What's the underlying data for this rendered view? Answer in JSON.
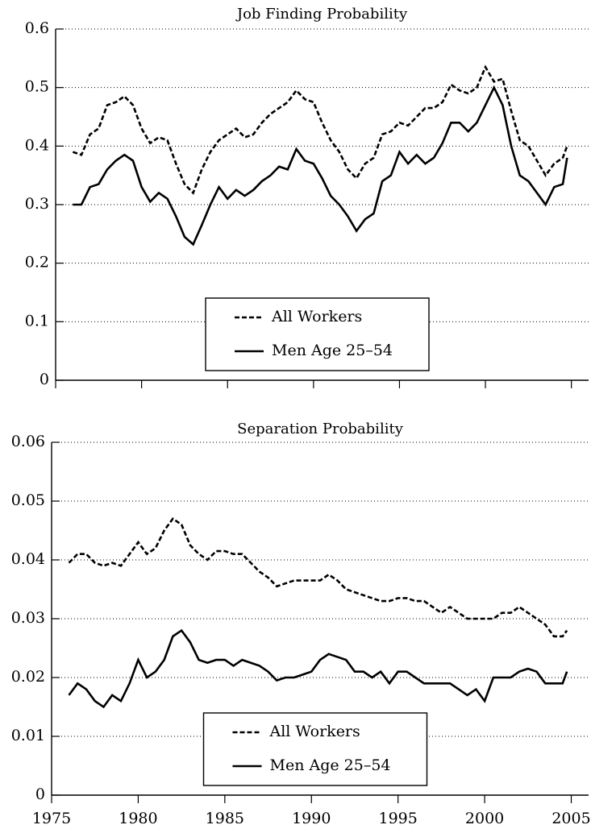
{
  "chart_data": [
    {
      "type": "line",
      "title": "Job Finding Probability",
      "x": [
        1976,
        1976.5,
        1977,
        1977.5,
        1978,
        1978.5,
        1979,
        1979.5,
        1980,
        1980.5,
        1981,
        1981.5,
        1982,
        1982.5,
        1983,
        1983.5,
        1984,
        1984.5,
        1985,
        1985.5,
        1986,
        1986.5,
        1987,
        1987.5,
        1988,
        1988.5,
        1989,
        1989.5,
        1990,
        1990.5,
        1991,
        1991.5,
        1992,
        1992.5,
        1993,
        1993.5,
        1994,
        1994.5,
        1995,
        1995.5,
        1996,
        1996.5,
        1997,
        1997.5,
        1998,
        1998.5,
        1999,
        1999.5,
        2000,
        2000.5,
        2001,
        2001.5,
        2002,
        2002.5,
        2003,
        2003.5,
        2004,
        2004.5,
        2004.75
      ],
      "series": [
        {
          "name": "All Workers",
          "color": "#000000",
          "style": "dashed",
          "values": [
            0.39,
            0.385,
            0.42,
            0.43,
            0.47,
            0.475,
            0.485,
            0.47,
            0.43,
            0.405,
            0.415,
            0.41,
            0.37,
            0.335,
            0.32,
            0.36,
            0.39,
            0.41,
            0.42,
            0.43,
            0.415,
            0.42,
            0.44,
            0.455,
            0.465,
            0.475,
            0.495,
            0.48,
            0.475,
            0.44,
            0.41,
            0.39,
            0.36,
            0.345,
            0.37,
            0.38,
            0.42,
            0.425,
            0.44,
            0.435,
            0.45,
            0.465,
            0.465,
            0.475,
            0.505,
            0.495,
            0.49,
            0.5,
            0.535,
            0.51,
            0.515,
            0.46,
            0.41,
            0.4,
            0.375,
            0.35,
            0.37,
            0.38,
            0.4
          ]
        },
        {
          "name": "Men Age 25–54",
          "color": "#000000",
          "style": "solid",
          "values": [
            0.3,
            0.3,
            0.33,
            0.335,
            0.36,
            0.375,
            0.385,
            0.375,
            0.33,
            0.305,
            0.32,
            0.31,
            0.28,
            0.245,
            0.232,
            0.265,
            0.3,
            0.33,
            0.31,
            0.325,
            0.315,
            0.325,
            0.34,
            0.35,
            0.365,
            0.36,
            0.395,
            0.375,
            0.37,
            0.345,
            0.315,
            0.3,
            0.28,
            0.255,
            0.275,
            0.285,
            0.34,
            0.35,
            0.39,
            0.37,
            0.385,
            0.37,
            0.38,
            0.405,
            0.44,
            0.44,
            0.425,
            0.44,
            0.47,
            0.5,
            0.47,
            0.4,
            0.35,
            0.34,
            0.32,
            0.3,
            0.33,
            0.335,
            0.38
          ]
        }
      ],
      "xlim": [
        1975,
        2006
      ],
      "xticks": [
        1975,
        1980,
        1985,
        1990,
        1995,
        2000,
        2005
      ],
      "ylim": [
        0,
        0.6
      ],
      "yticks": [
        0,
        0.1,
        0.2,
        0.3,
        0.4,
        0.5,
        0.6
      ],
      "grid": true,
      "legend": "bottom-center"
    },
    {
      "type": "line",
      "title": "Separation Probability",
      "x": [
        1976,
        1976.5,
        1977,
        1977.5,
        1978,
        1978.5,
        1979,
        1979.5,
        1980,
        1980.5,
        1981,
        1981.5,
        1982,
        1982.5,
        1983,
        1983.5,
        1984,
        1984.5,
        1985,
        1985.5,
        1986,
        1986.5,
        1987,
        1987.5,
        1988,
        1988.5,
        1989,
        1989.5,
        1990,
        1990.5,
        1991,
        1991.5,
        1992,
        1992.5,
        1993,
        1993.5,
        1994,
        1994.5,
        1995,
        1995.5,
        1996,
        1996.5,
        1997,
        1997.5,
        1998,
        1998.5,
        1999,
        1999.5,
        2000,
        2000.5,
        2001,
        2001.5,
        2002,
        2002.5,
        2003,
        2003.5,
        2004,
        2004.5,
        2004.75
      ],
      "series": [
        {
          "name": "All Workers",
          "color": "#000000",
          "style": "dashed",
          "values": [
            0.0395,
            0.041,
            0.041,
            0.0395,
            0.039,
            0.0395,
            0.039,
            0.041,
            0.043,
            0.041,
            0.042,
            0.045,
            0.047,
            0.046,
            0.0425,
            0.041,
            0.04,
            0.0415,
            0.0415,
            0.041,
            0.041,
            0.0395,
            0.038,
            0.037,
            0.0355,
            0.036,
            0.0365,
            0.0365,
            0.0365,
            0.0365,
            0.0375,
            0.0365,
            0.035,
            0.0345,
            0.034,
            0.0335,
            0.033,
            0.033,
            0.0335,
            0.0335,
            0.033,
            0.033,
            0.032,
            0.031,
            0.032,
            0.031,
            0.03,
            0.03,
            0.03,
            0.03,
            0.031,
            0.031,
            0.032,
            0.031,
            0.03,
            0.029,
            0.027,
            0.027,
            0.028
          ]
        },
        {
          "name": "Men Age 25–54",
          "color": "#000000",
          "style": "solid",
          "values": [
            0.017,
            0.019,
            0.018,
            0.016,
            0.015,
            0.017,
            0.016,
            0.019,
            0.023,
            0.02,
            0.021,
            0.023,
            0.027,
            0.028,
            0.026,
            0.023,
            0.0225,
            0.023,
            0.023,
            0.022,
            0.023,
            0.0225,
            0.022,
            0.021,
            0.0195,
            0.02,
            0.02,
            0.0205,
            0.021,
            0.023,
            0.024,
            0.0235,
            0.023,
            0.021,
            0.021,
            0.02,
            0.021,
            0.019,
            0.021,
            0.021,
            0.02,
            0.019,
            0.019,
            0.019,
            0.019,
            0.018,
            0.017,
            0.018,
            0.016,
            0.02,
            0.02,
            0.02,
            0.021,
            0.0215,
            0.021,
            0.019,
            0.019,
            0.019,
            0.021
          ]
        }
      ],
      "xlim": [
        1975,
        2006
      ],
      "xticks": [
        1975,
        1980,
        1985,
        1990,
        1995,
        2000,
        2005
      ],
      "ylim": [
        0,
        0.06
      ],
      "yticks": [
        0,
        0.01,
        0.02,
        0.03,
        0.04,
        0.05,
        0.06
      ],
      "grid": true,
      "legend": "bottom-center"
    }
  ]
}
